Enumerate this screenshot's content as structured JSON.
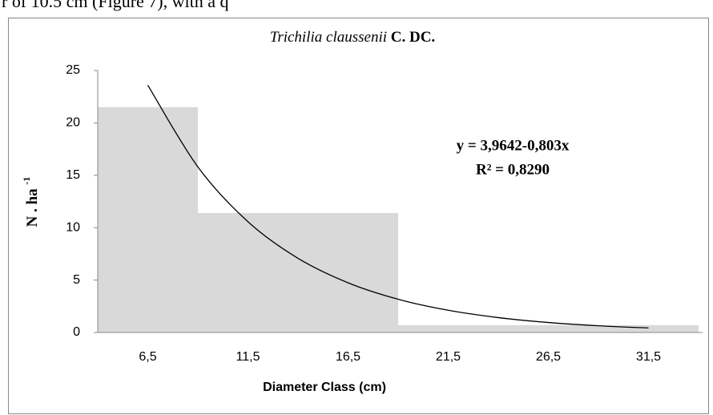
{
  "page_text": "r of 10.5 cm (Figure 7), with a q",
  "chart_data": {
    "type": "histogram",
    "title_species": "Trichilia claussenii",
    "title_author": "C. DC.",
    "ylabel": "N . ha",
    "ylabel_exponent": "-1",
    "xlabel": "Diameter Class (cm)",
    "bins": [
      4,
      9,
      19,
      34
    ],
    "counts": [
      21.5,
      11.4,
      0.7
    ],
    "color": "#d9d9d9",
    "trend": {
      "color": "#000000",
      "x": [
        6.5,
        9,
        11.5,
        14,
        16.5,
        19,
        21.5,
        24,
        26.5,
        29,
        31.5
      ],
      "values": [
        23.6,
        15.8,
        10.57,
        7.08,
        4.74,
        3.17,
        2.12,
        1.42,
        0.95,
        0.64,
        0.43
      ]
    },
    "annotations": [
      "y = 3,9642-0,803x",
      "R² = 0,8290"
    ],
    "xlim": [
      4,
      34
    ],
    "xticks": [
      {
        "value": 6.5,
        "label": "6,5"
      },
      {
        "value": 11.5,
        "label": "11,5"
      },
      {
        "value": 16.5,
        "label": "16,5"
      },
      {
        "value": 21.5,
        "label": "21,5"
      },
      {
        "value": 26.5,
        "label": "26,5"
      },
      {
        "value": 31.5,
        "label": "31,5"
      }
    ],
    "ylim": [
      0,
      25
    ],
    "yticks": [
      0,
      5,
      10,
      15,
      20,
      25
    ]
  }
}
